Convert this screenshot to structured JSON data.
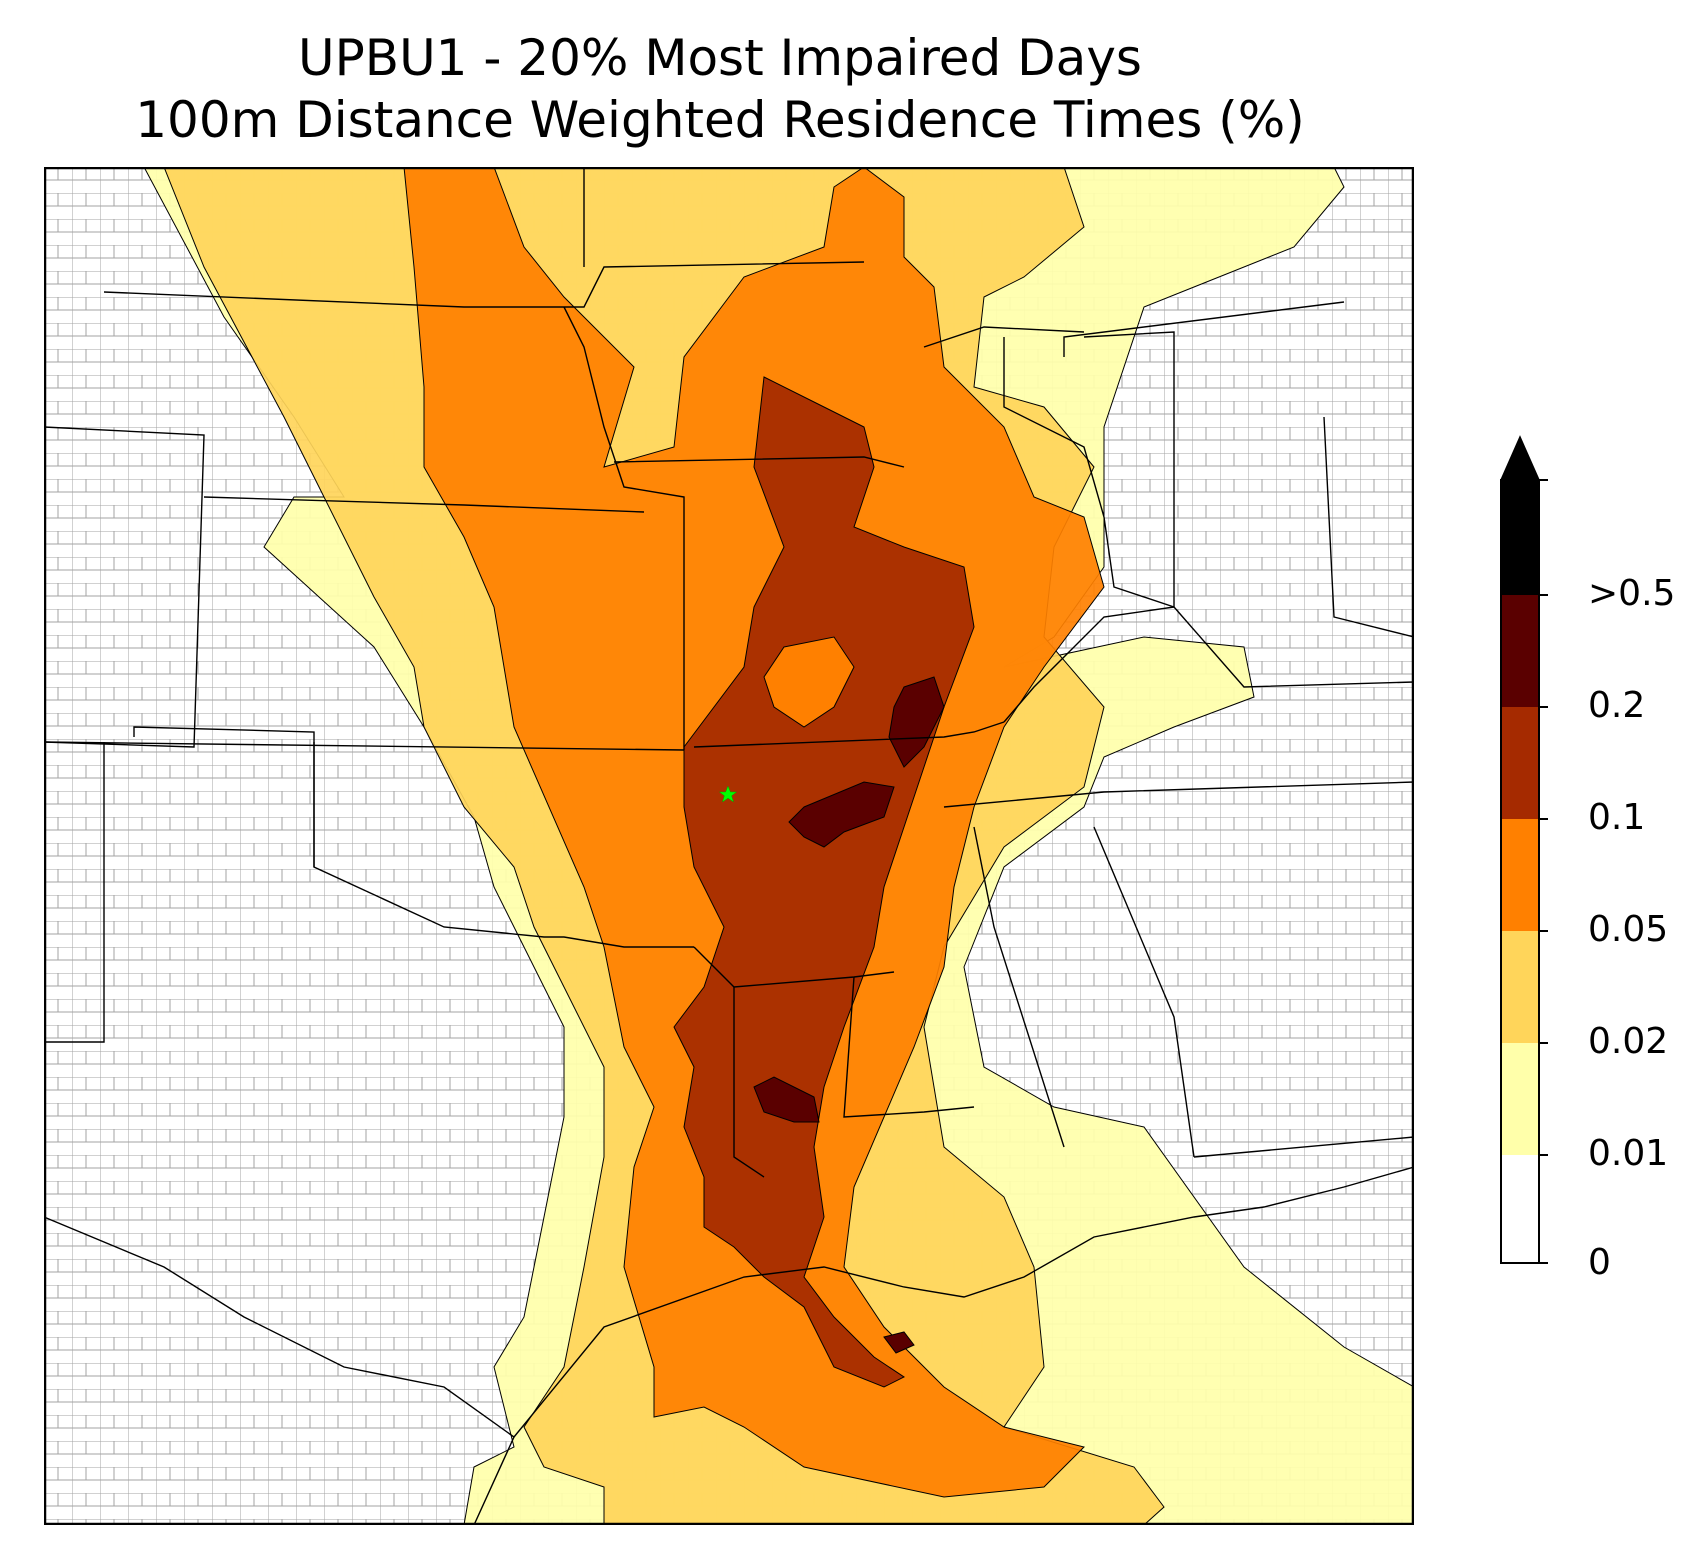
{
  "title": {
    "line1": "UPBU1 - 20% Most Impaired Days",
    "line2": "100m Distance Weighted Residence Times (%)"
  },
  "colorbar": {
    "levels": [
      {
        "label": "0",
        "color": "#ffffff"
      },
      {
        "label": "0.01",
        "color": "#ffffaa"
      },
      {
        "label": "0.02",
        "color": "#ffd55a"
      },
      {
        "label": "0.05",
        "color": "#ff8000"
      },
      {
        "label": "0.1",
        "color": "#a52a00"
      },
      {
        "label": "0.2",
        "color": "#5a0000"
      },
      {
        "label": ">0.5",
        "color": "#000000"
      }
    ],
    "extend": "max"
  },
  "marker": {
    "type": "star",
    "color": "#00ff00"
  },
  "colors": {
    "state_border": "#000000",
    "county_border": "#999999"
  }
}
